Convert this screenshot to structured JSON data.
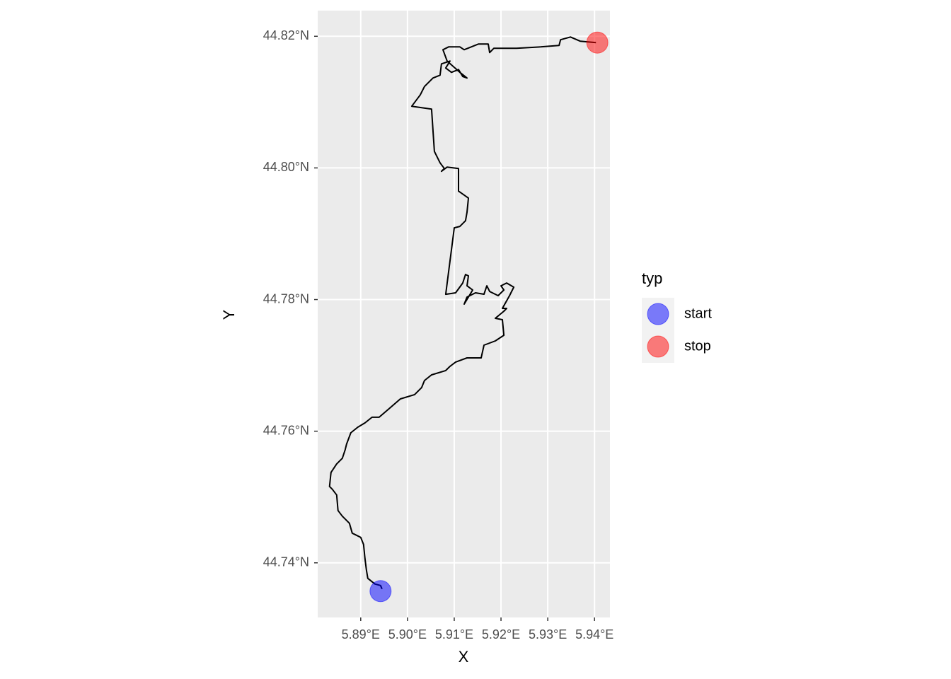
{
  "chart_data": {
    "type": "line",
    "x_label": "X",
    "y_label": "Y",
    "xlim": [
      5.8808,
      5.9433
    ],
    "ylim": [
      44.7317,
      44.8239
    ],
    "xticks": [
      {
        "value": 5.89,
        "label": "5.89°E"
      },
      {
        "value": 5.9,
        "label": "5.90°E"
      },
      {
        "value": 5.91,
        "label": "5.91°E"
      },
      {
        "value": 5.92,
        "label": "5.92°E"
      },
      {
        "value": 5.93,
        "label": "5.93°E"
      },
      {
        "value": 5.94,
        "label": "5.94°E"
      }
    ],
    "yticks": [
      {
        "value": 44.74,
        "label": "44.74°N"
      },
      {
        "value": 44.76,
        "label": "44.76°N"
      },
      {
        "value": 44.78,
        "label": "44.78°N"
      },
      {
        "value": 44.8,
        "label": "44.80°N"
      },
      {
        "value": 44.82,
        "label": "44.82°N"
      }
    ],
    "grid": true,
    "track": {
      "color": "#000000",
      "x": [
        5.89455,
        5.89424,
        5.89303,
        5.89152,
        5.89121,
        5.89091,
        5.89061,
        5.89,
        5.88818,
        5.88758,
        5.88606,
        5.88515,
        5.88485,
        5.88394,
        5.88333,
        5.88364,
        5.88485,
        5.88606,
        5.88667,
        5.88697,
        5.88788,
        5.88939,
        5.89091,
        5.89242,
        5.89394,
        5.89606,
        5.89848,
        5.90152,
        5.90303,
        5.90364,
        5.90515,
        5.90818,
        5.90909,
        5.9103,
        5.91273,
        5.91576,
        5.91636,
        5.91879,
        5.92061,
        5.9203,
        5.91879,
        5.92061,
        5.92121,
        5.9203,
        5.92182,
        5.92273,
        5.92121,
        5.92,
        5.92061,
        5.91939,
        5.91758,
        5.91697,
        5.91636,
        5.91455,
        5.91273,
        5.91212,
        5.91303,
        5.91394,
        5.91273,
        5.91303,
        5.91242,
        5.91182,
        5.9103,
        5.90818,
        5.91,
        5.91121,
        5.91242,
        5.91273,
        5.91303,
        5.91091,
        5.91091,
        5.90848,
        5.90727,
        5.90788,
        5.90697,
        5.90576,
        5.90515,
        5.90091,
        5.90273,
        5.90364,
        5.90545,
        5.90697,
        5.90727,
        5.90909,
        5.90818,
        5.9094,
        5.91091,
        5.91182,
        5.91273,
        5.91121,
        5.90848,
        5.90758,
        5.90879,
        5.91121,
        5.91212,
        5.91364,
        5.91515,
        5.91727,
        5.91758,
        5.91848,
        5.92333,
        5.92848,
        5.93242,
        5.93273,
        5.93485,
        5.93697,
        5.9403
      ],
      "y": [
        44.73603,
        44.73656,
        44.73678,
        44.73764,
        44.73893,
        44.74064,
        44.74279,
        44.74386,
        44.74451,
        44.74601,
        44.74709,
        44.74795,
        44.75031,
        44.75117,
        44.7516,
        44.75374,
        44.75503,
        44.75589,
        44.75718,
        44.75804,
        44.75976,
        44.76062,
        44.76126,
        44.76212,
        44.76212,
        44.76341,
        44.76491,
        44.76556,
        44.76663,
        44.7677,
        44.76856,
        44.76921,
        44.76985,
        44.7705,
        44.77114,
        44.77114,
        44.77307,
        44.77372,
        44.77458,
        44.77694,
        44.77715,
        44.77823,
        44.77866,
        44.77866,
        44.78059,
        44.78188,
        44.78252,
        44.78209,
        44.78145,
        44.78059,
        44.78123,
        44.78209,
        44.78081,
        44.78102,
        44.78038,
        44.7793,
        44.78038,
        44.78145,
        44.78209,
        44.7836,
        44.78381,
        44.78252,
        44.78102,
        44.7808,
        44.7909,
        44.79111,
        44.79197,
        44.79326,
        44.79541,
        44.79648,
        44.79992,
        44.80013,
        44.79949,
        44.79992,
        44.80078,
        44.8025,
        44.80894,
        44.80937,
        44.81109,
        44.81237,
        44.81366,
        44.81409,
        44.81581,
        44.81624,
        44.81517,
        44.81452,
        44.81495,
        44.81388,
        44.81366,
        44.81452,
        44.81624,
        44.81796,
        44.81839,
        44.81839,
        44.81796,
        44.81839,
        44.81882,
        44.81882,
        44.81753,
        44.81818,
        44.81818,
        44.81839,
        44.81861,
        44.81947,
        44.81989,
        44.81925,
        44.81904
      ]
    },
    "legend": {
      "title": "typ",
      "corner": "right"
    },
    "marker_alpha": 0.5,
    "series": [
      {
        "name": "start",
        "color": "#0000ff",
        "x": [
          5.89424
        ],
        "y": [
          44.7357
        ]
      },
      {
        "name": "stop",
        "color": "#ff0000",
        "x": [
          5.9406
        ],
        "y": [
          44.81904
        ]
      }
    ]
  }
}
